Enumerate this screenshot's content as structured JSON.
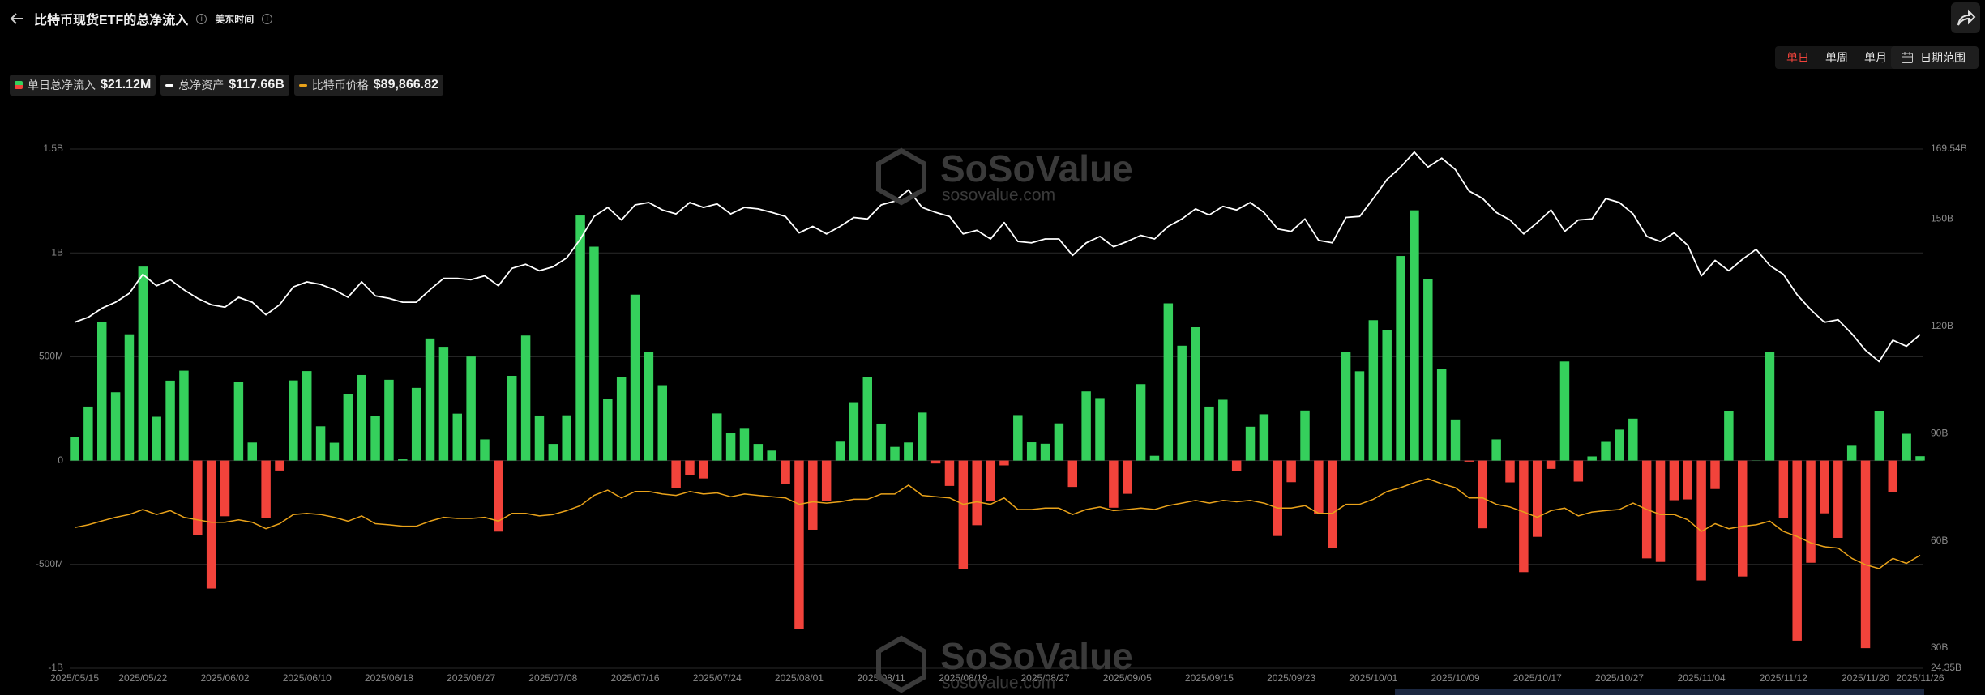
{
  "header": {
    "title": "比特币现货ETF的总净流入",
    "timezone": "美东时间"
  },
  "controls": {
    "periods": [
      "单日",
      "单周",
      "单月"
    ],
    "active_period": 0,
    "date_range": "日期范围"
  },
  "watermark": {
    "brand": "SoSoValue",
    "site": "sosovalue.com"
  },
  "chart_data": {
    "type": "combo",
    "categories": [
      "2025/05/15",
      null,
      null,
      null,
      null,
      "2025/05/22",
      null,
      null,
      null,
      null,
      null,
      "2025/06/02",
      null,
      null,
      null,
      null,
      null,
      "2025/06/10",
      null,
      null,
      null,
      null,
      null,
      "2025/06/18",
      null,
      null,
      null,
      null,
      null,
      "2025/06/27",
      null,
      null,
      null,
      null,
      null,
      "2025/07/08",
      null,
      null,
      null,
      null,
      null,
      "2025/07/16",
      null,
      null,
      null,
      null,
      null,
      "2025/07/24",
      null,
      null,
      null,
      null,
      null,
      "2025/08/01",
      null,
      null,
      null,
      null,
      null,
      "2025/08/11",
      null,
      null,
      null,
      null,
      null,
      "2025/08/19",
      null,
      null,
      null,
      null,
      null,
      "2025/08/27",
      null,
      null,
      null,
      null,
      null,
      "2025/09/05",
      null,
      null,
      null,
      null,
      null,
      "2025/09/15",
      null,
      null,
      null,
      null,
      null,
      "2025/09/23",
      null,
      null,
      null,
      null,
      null,
      "2025/10/01",
      null,
      null,
      null,
      null,
      null,
      "2025/10/09",
      null,
      null,
      null,
      null,
      null,
      "2025/10/17",
      null,
      null,
      null,
      null,
      null,
      "2025/10/27",
      null,
      null,
      null,
      null,
      null,
      "2025/11/04",
      null,
      null,
      null,
      null,
      null,
      "2025/11/12",
      null,
      null,
      null,
      null,
      null,
      "2025/11/20",
      null,
      null,
      null,
      "2025/11/26"
    ],
    "series": [
      {
        "name": "单日总净流入",
        "type": "bar",
        "color": "#35d05c",
        "negative_color": "#f2433b",
        "legend_value": "$21.12M",
        "values": [
          115,
          260,
          667,
          329,
          608,
          934,
          211,
          385,
          433,
          -358,
          -616,
          -268,
          378,
          87,
          -278,
          -48,
          386,
          431,
          165,
          86,
          322,
          412,
          216,
          389,
          6,
          350,
          588,
          548,
          226,
          501,
          102,
          -342,
          408,
          602,
          217,
          80,
          218,
          1180,
          1030,
          297,
          403,
          799,
          523,
          363,
          -131,
          -68,
          -86,
          227,
          131,
          157,
          80,
          48,
          -114,
          -812,
          -333,
          -196,
          91,
          281,
          404,
          178,
          66,
          87,
          231,
          -14,
          -122,
          -523,
          -311,
          -194,
          -23,
          219,
          88,
          81,
          179,
          -127,
          333,
          301,
          -227,
          -160,
          368,
          23,
          757,
          553,
          642,
          260,
          293,
          -51,
          163,
          223,
          -363,
          -104,
          241,
          -258,
          -419,
          522,
          430,
          676,
          627,
          985,
          1205,
          875,
          441,
          198,
          -5,
          -326,
          102,
          -105,
          -537,
          -367,
          -40,
          477,
          -101,
          20,
          90,
          149,
          202,
          -471,
          -488,
          -191,
          -187,
          -577,
          -137,
          240,
          -558,
          1,
          524,
          -278,
          -867,
          -492,
          -254,
          -372,
          75,
          -903,
          238,
          -151,
          129,
          21.12
        ]
      },
      {
        "name": "总净资产",
        "type": "line",
        "axis": "y2",
        "color": "#ffffff",
        "legend_value": "$117.66B",
        "values": [
          121.1,
          122.5,
          125,
          126.7,
          129.2,
          134.5,
          131.3,
          133,
          130.2,
          127.8,
          126,
          125.3,
          128.1,
          126.7,
          123.2,
          126,
          131,
          132.4,
          131.7,
          130.2,
          128.1,
          132.4,
          128.5,
          127.8,
          126.7,
          126.7,
          130.2,
          133.4,
          133.4,
          133,
          134.1,
          131.3,
          136.2,
          137.3,
          135.5,
          136.6,
          139.1,
          144.4,
          150.7,
          153.2,
          149.7,
          153.9,
          154.6,
          152.5,
          151.4,
          154.6,
          153.2,
          154.2,
          151.4,
          153.2,
          152.8,
          151.8,
          150.7,
          146.1,
          147.9,
          145.8,
          147.9,
          150.4,
          150,
          153.9,
          155,
          158.1,
          153.2,
          151.8,
          150.7,
          145.8,
          146.8,
          144.4,
          149,
          143.7,
          143.3,
          144.4,
          144.4,
          139.8,
          143.3,
          145.1,
          142.2,
          143.7,
          145.4,
          144.4,
          147.9,
          150,
          152.8,
          151.1,
          153.5,
          152.5,
          154.6,
          151.8,
          147.2,
          146.5,
          150,
          144,
          143.3,
          150.4,
          150.7,
          155.7,
          161,
          164.5,
          168.7,
          164.5,
          167,
          163.8,
          157.8,
          155.7,
          151.8,
          149.7,
          145.8,
          149,
          152.5,
          146.5,
          149.7,
          150,
          155.7,
          154.6,
          151.4,
          145.1,
          143.7,
          146.1,
          142.6,
          134.1,
          138.4,
          135.5,
          138.7,
          141.5,
          137,
          134.5,
          128.8,
          124.6,
          121.1,
          121.8,
          117.9,
          113.3,
          110.1,
          116.1,
          114.4,
          117.66
        ]
      },
      {
        "name": "比特币价格",
        "type": "line",
        "axis": "y3",
        "color": "#e9a21a",
        "legend_value": "$89,866.82",
        "values": [
          102000,
          103200,
          104900,
          106500,
          107700,
          109900,
          107700,
          109400,
          106500,
          105400,
          104300,
          104300,
          105400,
          104300,
          101500,
          103700,
          107700,
          108200,
          107700,
          106500,
          104800,
          107100,
          103700,
          103200,
          102600,
          102600,
          104800,
          106500,
          106000,
          106000,
          106500,
          104800,
          108200,
          108200,
          107100,
          107700,
          109400,
          111600,
          116100,
          118400,
          115000,
          117800,
          117800,
          116700,
          116100,
          117800,
          116700,
          117200,
          115500,
          116700,
          116100,
          115500,
          115000,
          112200,
          113300,
          112700,
          113300,
          114400,
          114400,
          116700,
          116700,
          120600,
          116100,
          115500,
          115000,
          112200,
          113300,
          112200,
          115000,
          109900,
          109900,
          110500,
          110500,
          107700,
          109900,
          111000,
          109400,
          109900,
          110500,
          109900,
          111600,
          112700,
          113900,
          112700,
          113900,
          113300,
          113900,
          112700,
          110500,
          110500,
          111600,
          108200,
          108200,
          112200,
          112200,
          114400,
          117800,
          119500,
          121700,
          123400,
          121200,
          119500,
          115000,
          115000,
          112200,
          111000,
          108800,
          106500,
          109400,
          110500,
          107100,
          108800,
          109400,
          109900,
          112700,
          109900,
          107700,
          107700,
          105400,
          100300,
          103700,
          101500,
          102600,
          103200,
          104800,
          100300,
          98100,
          95300,
          93600,
          93000,
          88500,
          85700,
          84000,
          88500,
          86300,
          89866.82
        ]
      }
    ],
    "ylim": [
      -1000,
      1500
    ],
    "yticks": [
      {
        "value": -1000,
        "label": "-1B"
      },
      {
        "value": -500,
        "label": "-500M"
      },
      0,
      {
        "value": 500,
        "label": "500M"
      },
      {
        "value": 1000,
        "label": "1B"
      },
      {
        "value": 1500,
        "label": "1.5B"
      }
    ],
    "y2lim": [
      24.35,
      169.54
    ],
    "y2ticks": [
      {
        "value": 24.35,
        "label": "24.35B"
      },
      {
        "value": 30,
        "label": "30B"
      },
      {
        "value": 60,
        "label": "60B"
      },
      {
        "value": 90,
        "label": "90B"
      },
      {
        "value": 120,
        "label": "120B"
      },
      {
        "value": 150,
        "label": "150B"
      },
      {
        "value": 169.54,
        "label": "169.54B"
      }
    ],
    "grid": true
  }
}
